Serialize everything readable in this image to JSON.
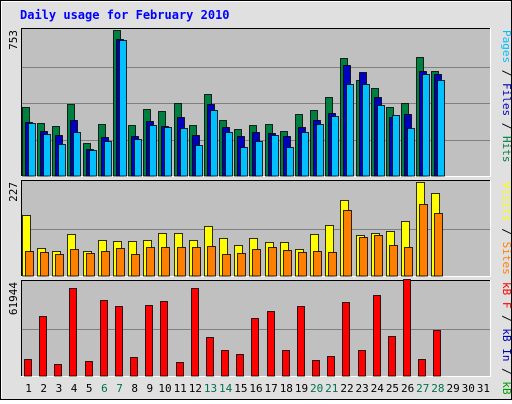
{
  "chart_data": {
    "type": "bar",
    "title": "Daily usage for February 2010",
    "categories": [
      "1",
      "2",
      "3",
      "4",
      "5",
      "6",
      "7",
      "8",
      "9",
      "10",
      "11",
      "12",
      "13",
      "14",
      "15",
      "16",
      "17",
      "18",
      "19",
      "20",
      "21",
      "22",
      "23",
      "24",
      "25",
      "26",
      "27",
      "28",
      "29",
      "30",
      "31"
    ],
    "weekend_days": [
      6,
      7,
      13,
      14,
      20,
      21,
      27,
      28
    ],
    "colors": {
      "background": "#C0C0C0",
      "frame": "#E0E0E0",
      "title": "#0000FF",
      "hits": "#008040",
      "files": "#0000C0",
      "pages": "#00C0FF",
      "visits": "#FFFF00",
      "sites": "#FF8000",
      "kbin": "#FF0000",
      "kbout": "#00A000",
      "day_label": "#000000",
      "weekend_label": "#007050"
    },
    "panels": [
      {
        "id": "top",
        "max_label": "753",
        "ymax": 753,
        "axis_label_parts": [
          {
            "text": "Pages",
            "color": "#00C0FF"
          },
          {
            "text": " / ",
            "color": "#000000"
          },
          {
            "text": "Files",
            "color": "#0000C0"
          },
          {
            "text": " / ",
            "color": "#000000"
          },
          {
            "text": "Hits",
            "color": "#008040"
          }
        ],
        "series": [
          {
            "name": "Hits",
            "color": "#008040",
            "values": [
              354,
              272,
              257,
              373,
              168,
              266,
              753,
              261,
              343,
              337,
              376,
              262,
              424,
              288,
              241,
              263,
              268,
              233,
              321,
              340,
              409,
              607,
              496,
              455,
              355,
              374,
              614,
              544
            ]
          },
          {
            "name": "Files",
            "color": "#0000C0",
            "values": [
              276,
              231,
              213,
              290,
              141,
              203,
              709,
              207,
              286,
              259,
              302,
              211,
              369,
              251,
              207,
              225,
              222,
              207,
              254,
              289,
              323,
              573,
              535,
              407,
              303,
              320,
              543,
              528
            ]
          },
          {
            "name": "Pages",
            "color": "#00C0FF",
            "values": [
              272,
              216,
              167,
              228,
              136,
              183,
              703,
              189,
              261,
              253,
              247,
              162,
              340,
              227,
              152,
              180,
              210,
              150,
              228,
              267,
              310,
              477,
              477,
              366,
              316,
              246,
              524,
              496
            ]
          }
        ]
      },
      {
        "id": "middle",
        "max_label": "227",
        "ymax": 227,
        "axis_label_parts": [
          {
            "text": "Visits",
            "color": "#FFFF00"
          },
          {
            "text": " / ",
            "color": "#000000"
          },
          {
            "text": "Sites",
            "color": "#FF8000"
          }
        ],
        "series": [
          {
            "name": "Visits",
            "color": "#FFFF00",
            "values": [
              147,
              67,
              60,
              101,
              60,
              86,
              84,
              84,
              86,
              103,
              103,
              86,
              120,
              92,
              76,
              92,
              81,
              82,
              66,
              101,
              124,
              183,
              100,
              105,
              108,
              132,
              227,
              200
            ]
          },
          {
            "name": "Sites",
            "color": "#FF8000",
            "values": [
              60,
              58,
              54,
              65,
              55,
              61,
              68,
              54,
              70,
              69,
              71,
              70,
              72,
              54,
              55,
              65,
              71,
              63,
              59,
              61,
              58,
              160,
              95,
              98,
              75,
              71,
              175,
              151
            ]
          }
        ]
      },
      {
        "id": "bottom",
        "max_label": "61944",
        "ymax": 61944,
        "axis_label_parts": [
          {
            "text": "kB F",
            "color": "#FF0000"
          },
          {
            "text": " / ",
            "color": "#000000"
          },
          {
            "text": "kB In",
            "color": "#0000C0"
          },
          {
            "text": " / ",
            "color": "#000000"
          },
          {
            "text": "kB Out",
            "color": "#00A000"
          }
        ],
        "series": [
          {
            "name": "kB F",
            "color": "#FF0000",
            "values": [
              11500,
              39500,
              7600,
              58200,
              10100,
              50200,
              46400,
              12300,
              46500,
              49500,
              9100,
              58200,
              26000,
              17400,
              14800,
              38200,
              42700,
              16900,
              46400,
              10400,
              13500,
              48700,
              17300,
              53600,
              26300,
              64000,
              11300,
              30000
            ]
          }
        ]
      }
    ]
  }
}
